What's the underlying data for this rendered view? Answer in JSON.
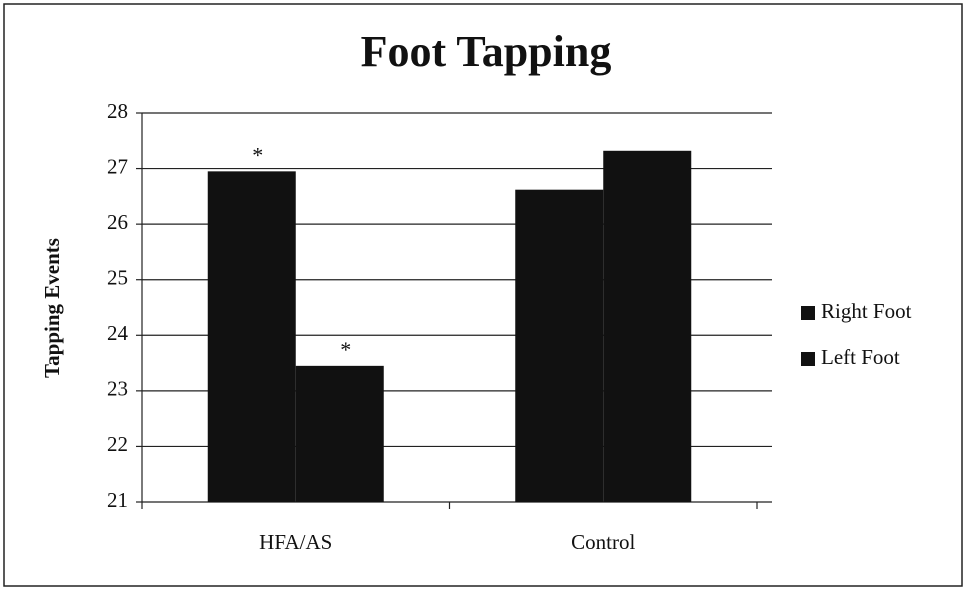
{
  "chart_data": {
    "type": "bar",
    "title": "Foot Tapping",
    "y_label": "Tapping Events",
    "categories": [
      "HFA/AS",
      "Control"
    ],
    "series": [
      {
        "name": "Right Foot",
        "color": "#111111",
        "values": [
          26.95,
          26.62
        ],
        "annotations": [
          "*",
          null
        ]
      },
      {
        "name": "Left Foot",
        "color": "#111111",
        "values": [
          23.45,
          27.32
        ],
        "annotations": [
          "*",
          null
        ]
      }
    ],
    "ylim": [
      21,
      28
    ],
    "yticks": [
      21,
      22,
      23,
      24,
      25,
      26,
      27,
      28
    ],
    "grid": true,
    "legend": "right"
  }
}
